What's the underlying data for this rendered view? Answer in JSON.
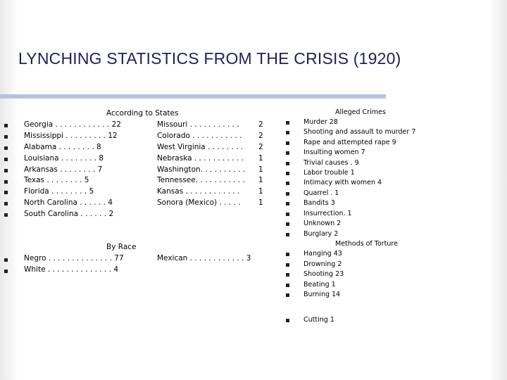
{
  "title": "LYNCHING STATISTICS FROM THE CRISIS (1920)",
  "states": {
    "heading": "According to States",
    "col1": [
      "Georgia . . . . . . . . . . . . 22",
      "Mississippi . . . . . . . . . 12",
      "Alabama . . . . . . . . 8",
      "Louisiana . . . . . . . . 8",
      "Arkansas . . . . . . . . 7",
      "Texas . . . . . . . . 5",
      "Florida . . . . . . . . 5",
      "North Carolina . . . . . . 4",
      "South Carolina . . . . . . 2"
    ],
    "col2": [
      "Missouri . . . . . . . . . . .",
      "Colorado . . . . . . . . . . .",
      "West Virginia . . . . . . . .",
      "Nebraska . . . . . . . . . . .",
      "Washington. . . . . . . . . .",
      "Tennessee. . . . . . . . . . .",
      "Kansas . . . . . . . . . . . .",
      "Sonora (Mexico) . . . . ."
    ],
    "col2_values": [
      "2",
      "2",
      "2",
      "1",
      "1",
      "1",
      "1",
      "1"
    ]
  },
  "race": {
    "heading": "By Race",
    "rows": [
      "Negro . . . . . . . . . . . . . . 77",
      "White . . . . . . . . . . . . . . 4"
    ],
    "mexican": "Mexican . . . . . . . . . . . . 3"
  },
  "crimes": {
    "heading": "Alleged Crimes",
    "items": [
      "Murder  28",
      "Shooting and assault   to murder 7",
      "Rape and attempted   rape  9",
      "Insulting women    7",
      "Trivial causes . 9",
      "Labor trouble 1",
      "Intimacy with women       4",
      "Quarrel . 1",
      "Bandits   3",
      "Insurrection. 1",
      "Unknown 2",
      "Burglary 2"
    ]
  },
  "torture": {
    "heading": "Methods of Torture",
    "items": [
      "Hanging  43",
      "Drowning 2",
      "Shooting 23",
      "Beating 1",
      "Burning  14",
      "Cutting 1"
    ]
  }
}
